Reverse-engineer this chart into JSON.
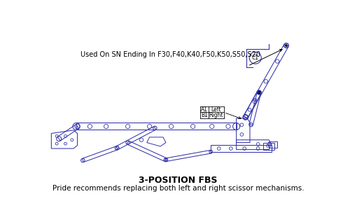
{
  "title": "3-POSITION FBS",
  "subtitle": "Pride recommends replacing both left and right scissor mechanisms.",
  "note": "Used On SN Ending In F30,F40,K40,F50,K50,S50,S20",
  "part_label_a": "A1",
  "part_label_b": "B1",
  "part_label_a_text": "Left",
  "part_label_b_text": "Right",
  "callout_label": "C1",
  "line_color": "#3333aa",
  "bg_color": "#ffffff",
  "title_fontsize": 9,
  "subtitle_fontsize": 7.5,
  "note_fontsize": 7
}
